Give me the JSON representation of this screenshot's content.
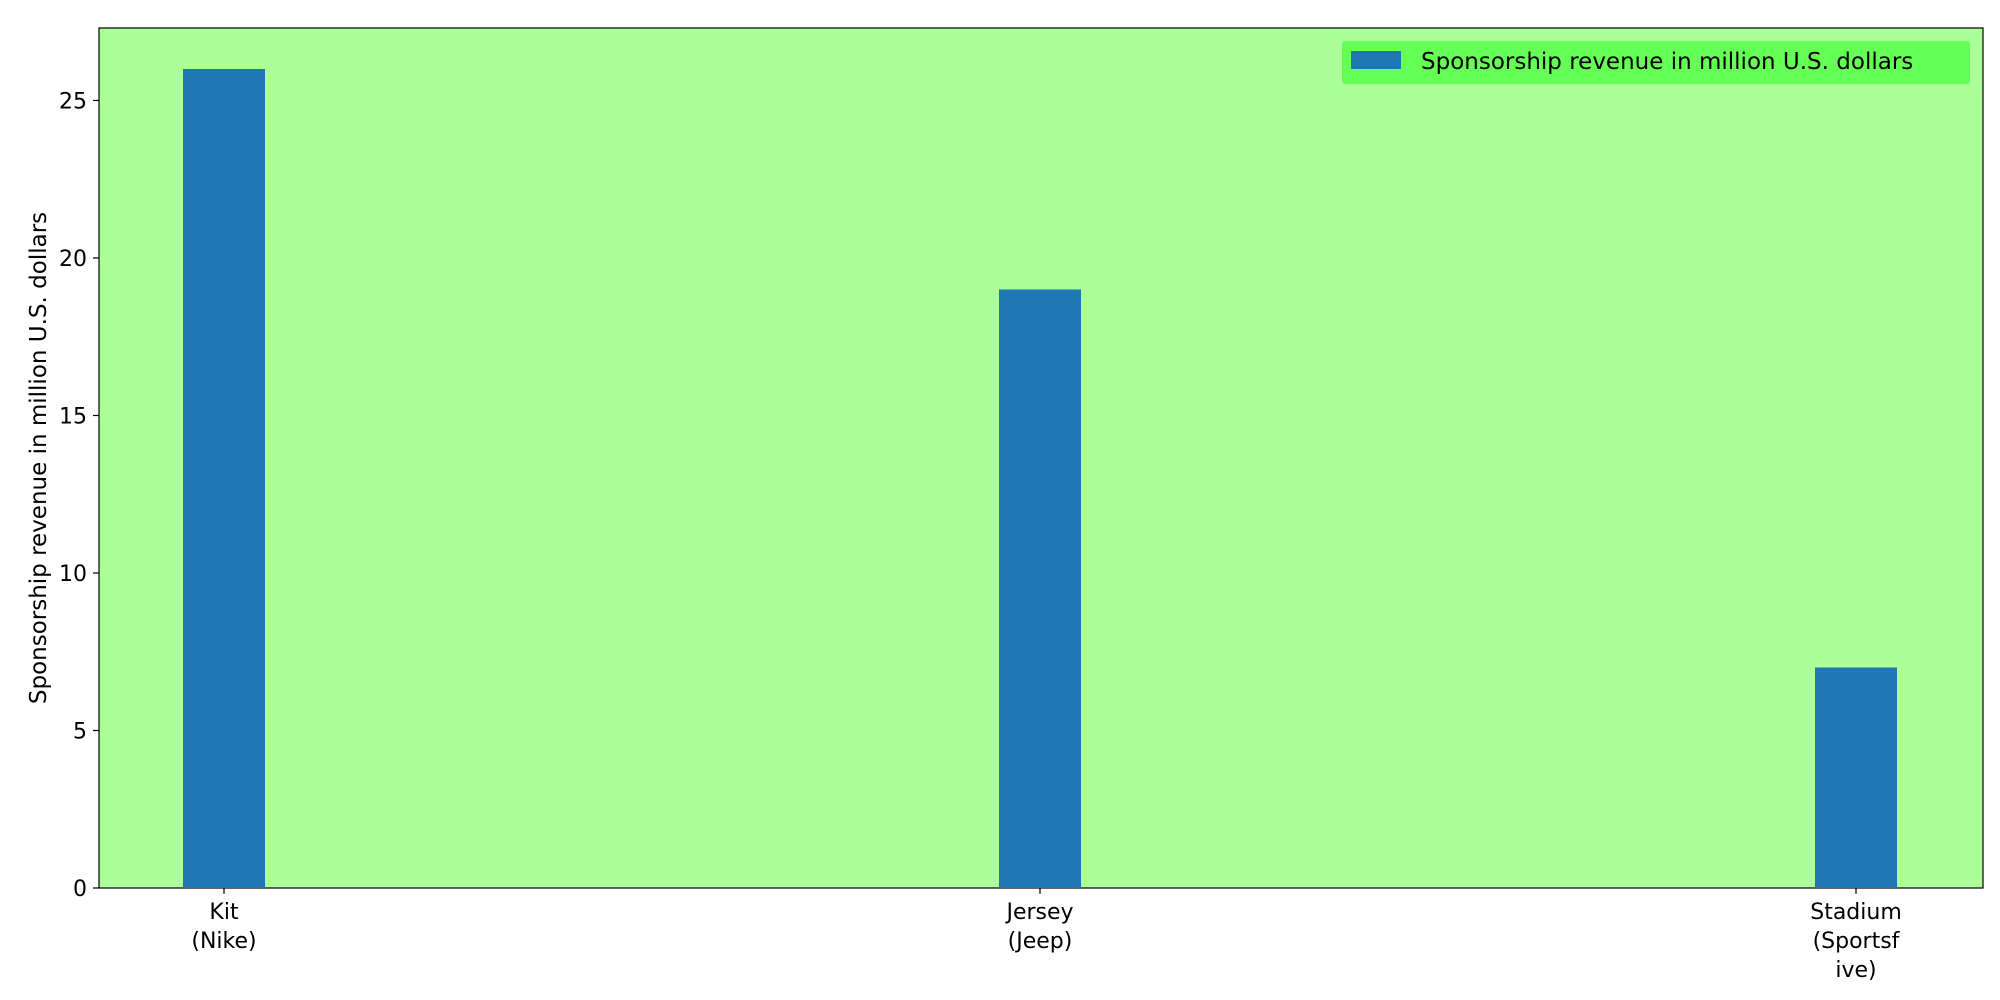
{
  "colors": {
    "plot_background": "#adff9a",
    "legend_background": "#66ff55",
    "bar": "#1f77b4"
  },
  "chart_data": {
    "type": "bar",
    "categories": [
      [
        "Kit",
        "(Nike)"
      ],
      [
        "Jersey",
        "(Jeep)"
      ],
      [
        "Stadium",
        "(Sportsf",
        "ive)"
      ]
    ],
    "series": [
      {
        "name": "Sponsorship revenue in million U.S. dollars",
        "values": [
          26,
          19,
          7
        ]
      }
    ],
    "ylabel": "Sponsorship revenue in million U.S. dollars",
    "xlabel": "",
    "ylim": [
      0,
      27.3
    ],
    "yticks": [
      0,
      5,
      10,
      15,
      20,
      25
    ],
    "grid": false,
    "legend": "top-right"
  }
}
